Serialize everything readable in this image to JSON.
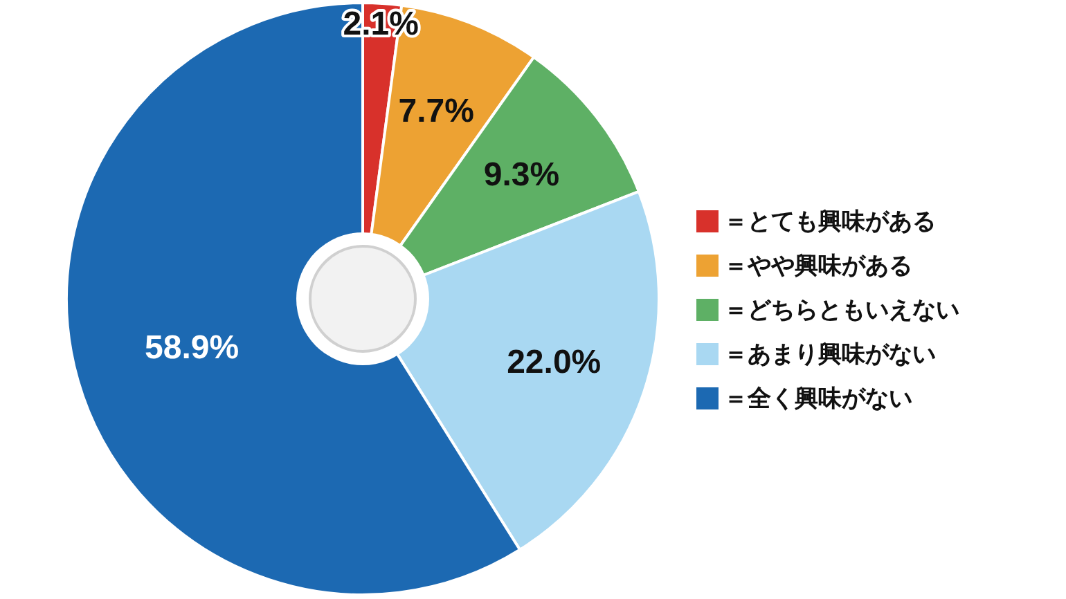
{
  "chart_data": {
    "type": "donut",
    "categories": [
      "＝とても興味がある",
      "＝やや興味がある",
      "＝どちらともいえない",
      "＝あまり興味がない",
      "＝全く興味がない"
    ],
    "values": [
      2.1,
      7.7,
      9.3,
      22.0,
      58.9
    ],
    "colors": [
      "#d8312b",
      "#eda233",
      "#5eb065",
      "#a9d8f2",
      "#1c69b2"
    ],
    "value_labels": [
      "2.1%",
      "7.7%",
      "9.3%",
      "22.0%",
      "58.9%"
    ],
    "legend": "right"
  }
}
